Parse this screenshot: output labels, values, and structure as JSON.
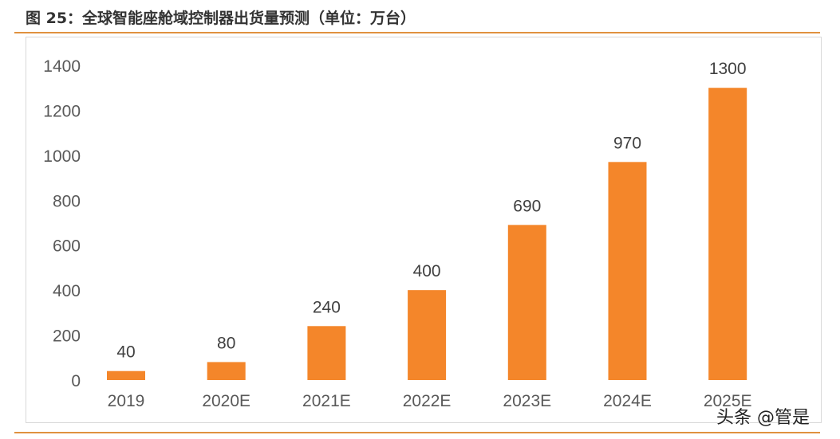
{
  "title": "图 25：全球智能座舱域控制器出货量预测（单位：万台）",
  "watermark": "头条 @管是",
  "colors": {
    "bar": "#F4862A",
    "rule": "#E0913F",
    "text": "#595959"
  },
  "chart_data": {
    "type": "bar",
    "title": "",
    "xlabel": "",
    "ylabel": "",
    "categories": [
      "2019",
      "2020E",
      "2021E",
      "2022E",
      "2023E",
      "2024E",
      "2025E"
    ],
    "values": [
      40,
      80,
      240,
      400,
      690,
      970,
      1300
    ],
    "ylim": [
      0,
      1400
    ],
    "yticks": [
      0,
      200,
      400,
      600,
      800,
      1000,
      1200,
      1400
    ],
    "grid": false,
    "legend": "none",
    "data_labels": true
  }
}
